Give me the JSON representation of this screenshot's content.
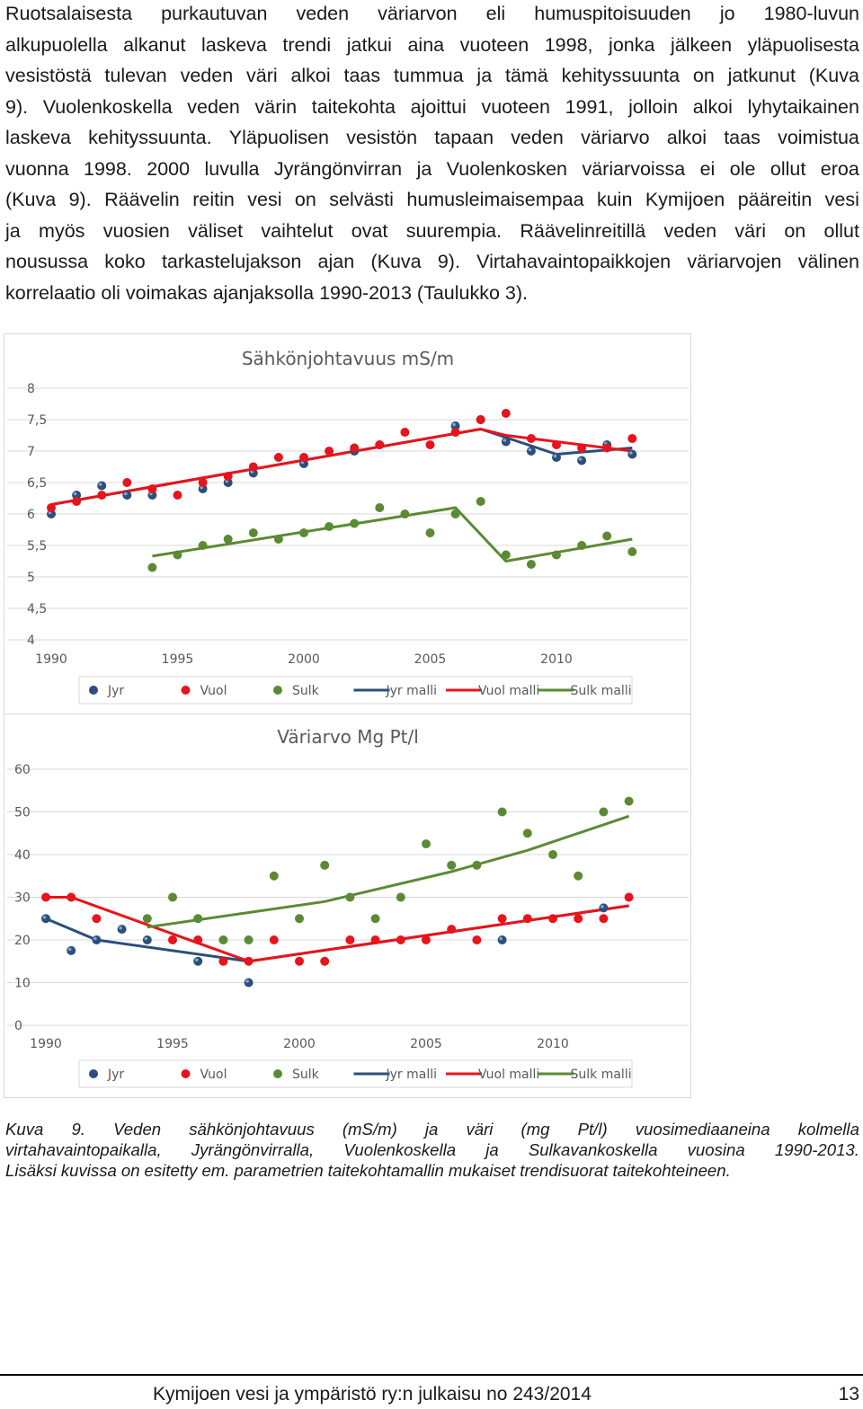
{
  "paragraph_lines": [
    "Ruotsalaisesta purkautuvan veden väriarvon eli humuspitoisuuden jo 1980-luvun",
    "alkupuolella alkanut laskeva trendi jatkui aina vuoteen 1998, jonka jälkeen yläpuolisesta",
    "vesistöstä tulevan veden väri alkoi taas tummua ja tämä kehityssuunta on jatkunut (Kuva",
    "9). Vuolenkoskella veden värin taitekohta ajoittui vuoteen 1991, jolloin alkoi lyhytaikainen",
    "laskeva kehityssuunta. Yläpuolisen vesistön tapaan veden väriarvo alkoi taas voimistua",
    "vuonna 1998. 2000 luvulla Jyrängönvirran ja Vuolenkosken väriarvoissa ei ole ollut eroa",
    "(Kuva 9). Räävelin reitin vesi on selvästi humusleimaisempaa kuin Kymijoen pääreitin vesi",
    "ja myös vuosien väliset vaihtelut ovat suurempia. Räävelinreitillä veden väri on ollut",
    "nousussa koko tarkastelujakson ajan (Kuva 9). Virtahavaintopaikkojen väriarvojen välinen",
    "korrelaatio oli voimakas ajanjaksolla 1990-2013 (Taulukko 3)."
  ],
  "caption_lines": [
    "Kuva 9. Veden sähkönjohtavuus (mS/m) ja väri (mg Pt/l) vuosimediaaneina kolmella",
    "virtahavaintopaikalla, Jyrängönvirralla, Vuolenkoskella ja Sulkavankoskella vuosina 1990-2013.",
    "Lisäksi kuvissa on esitetty em. parametrien taitekohtamallin mukaiset trendisuorat taitekohteineen."
  ],
  "footer": {
    "publication": "Kymijoen vesi ja ympäristö ry:n julkaisu no 243/2014",
    "page_number": "13"
  },
  "colors": {
    "jyr": "#2b4f7a",
    "vuol": "#e8141b",
    "sulk": "#5b8a33",
    "grid": "#d9d9d9",
    "axis_text": "#595959"
  },
  "chart_data": [
    {
      "type": "scatter",
      "title": "Sähkönjohtavuus mS/m",
      "xlabel": "",
      "ylabel": "",
      "xlim": [
        1990,
        2013
      ],
      "ylim": [
        4,
        8
      ],
      "x_ticks": [
        "1990",
        "1995",
        "2000",
        "2005",
        "2010"
      ],
      "y_ticks": [
        "8",
        "7,5",
        "7",
        "6,5",
        "6",
        "5,5",
        "5",
        "4,5",
        "4"
      ],
      "grid": true,
      "legend_position": "bottom",
      "legend": [
        "Jyr",
        "Vuol",
        "Sulk",
        "Jyr malli",
        "Vuol malli",
        "Sulk malli"
      ],
      "series": [
        {
          "name": "Jyr",
          "kind": "points",
          "color": "jyr",
          "points": [
            [
              1990,
              6.0
            ],
            [
              1991,
              6.3
            ],
            [
              1992,
              6.45
            ],
            [
              1993,
              6.3
            ],
            [
              1994,
              6.3
            ],
            [
              1996,
              6.4
            ],
            [
              1997,
              6.5
            ],
            [
              1998,
              6.65
            ],
            [
              2000,
              6.8
            ],
            [
              2002,
              7.0
            ],
            [
              2003,
              7.1
            ],
            [
              2006,
              7.4
            ],
            [
              2007,
              7.5
            ],
            [
              2008,
              7.15
            ],
            [
              2009,
              7.0
            ],
            [
              2010,
              6.9
            ],
            [
              2011,
              6.85
            ],
            [
              2012,
              7.1
            ],
            [
              2013,
              6.95
            ]
          ]
        },
        {
          "name": "Vuol",
          "kind": "points",
          "color": "vuol",
          "points": [
            [
              1990,
              6.1
            ],
            [
              1991,
              6.2
            ],
            [
              1992,
              6.3
            ],
            [
              1993,
              6.5
            ],
            [
              1994,
              6.4
            ],
            [
              1995,
              6.3
            ],
            [
              1996,
              6.5
            ],
            [
              1997,
              6.6
            ],
            [
              1998,
              6.75
            ],
            [
              1999,
              6.9
            ],
            [
              2000,
              6.9
            ],
            [
              2001,
              7.0
            ],
            [
              2002,
              7.05
            ],
            [
              2003,
              7.1
            ],
            [
              2004,
              7.3
            ],
            [
              2005,
              7.1
            ],
            [
              2006,
              7.3
            ],
            [
              2007,
              7.5
            ],
            [
              2008,
              7.6
            ],
            [
              2009,
              7.2
            ],
            [
              2010,
              7.1
            ],
            [
              2011,
              7.05
            ],
            [
              2012,
              7.05
            ],
            [
              2013,
              7.2
            ]
          ]
        },
        {
          "name": "Sulk",
          "kind": "points",
          "color": "sulk",
          "points": [
            [
              1994,
              5.15
            ],
            [
              1995,
              5.35
            ],
            [
              1996,
              5.5
            ],
            [
              1997,
              5.6
            ],
            [
              1998,
              5.7
            ],
            [
              1999,
              5.6
            ],
            [
              2000,
              5.7
            ],
            [
              2001,
              5.8
            ],
            [
              2002,
              5.85
            ],
            [
              2003,
              6.1
            ],
            [
              2004,
              6.0
            ],
            [
              2005,
              5.7
            ],
            [
              2006,
              6.0
            ],
            [
              2007,
              6.2
            ],
            [
              2008,
              5.35
            ],
            [
              2009,
              5.2
            ],
            [
              2010,
              5.35
            ],
            [
              2011,
              5.5
            ],
            [
              2012,
              5.65
            ],
            [
              2013,
              5.4
            ]
          ]
        },
        {
          "name": "Jyr malli",
          "kind": "line",
          "color": "jyr",
          "points": [
            [
              1990,
              6.15
            ],
            [
              2007,
              7.35
            ],
            [
              2010,
              6.95
            ],
            [
              2013,
              7.05
            ]
          ]
        },
        {
          "name": "Vuol malli",
          "kind": "line",
          "color": "vuol",
          "points": [
            [
              1990,
              6.15
            ],
            [
              2007,
              7.35
            ],
            [
              2008,
              7.25
            ],
            [
              2013,
              7.0
            ]
          ]
        },
        {
          "name": "Sulk malli",
          "kind": "line",
          "color": "sulk",
          "points": [
            [
              1994,
              5.33
            ],
            [
              2006,
              6.1
            ],
            [
              2008,
              5.25
            ],
            [
              2013,
              5.6
            ]
          ]
        }
      ]
    },
    {
      "type": "scatter",
      "title": "Väriarvo Mg Pt/l",
      "xlabel": "",
      "ylabel": "",
      "xlim": [
        1990,
        2013
      ],
      "ylim": [
        0,
        60
      ],
      "x_ticks": [
        "1990",
        "1995",
        "2000",
        "2005",
        "2010"
      ],
      "y_ticks": [
        "60",
        "50",
        "40",
        "30",
        "20",
        "10",
        "0"
      ],
      "grid": true,
      "legend_position": "bottom",
      "legend": [
        "Jyr",
        "Vuol",
        "Sulk",
        "Jyr malli",
        "Vuol malli",
        "Sulk malli"
      ],
      "series": [
        {
          "name": "Jyr",
          "kind": "points",
          "color": "jyr",
          "points": [
            [
              1990,
              25
            ],
            [
              1991,
              17.5
            ],
            [
              1992,
              20
            ],
            [
              1993,
              22.5
            ],
            [
              1994,
              20
            ],
            [
              1996,
              15
            ],
            [
              1998,
              10
            ],
            [
              2008,
              20
            ],
            [
              2012,
              27.5
            ]
          ]
        },
        {
          "name": "Vuol",
          "kind": "points",
          "color": "vuol",
          "points": [
            [
              1990,
              30
            ],
            [
              1991,
              30
            ],
            [
              1992,
              25
            ],
            [
              1995,
              20
            ],
            [
              1996,
              20
            ],
            [
              1997,
              15
            ],
            [
              1998,
              15
            ],
            [
              1999,
              20
            ],
            [
              2000,
              15
            ],
            [
              2001,
              15
            ],
            [
              2002,
              20
            ],
            [
              2003,
              20
            ],
            [
              2004,
              20
            ],
            [
              2005,
              20
            ],
            [
              2006,
              22.5
            ],
            [
              2007,
              20
            ],
            [
              2008,
              25
            ],
            [
              2009,
              25
            ],
            [
              2010,
              25
            ],
            [
              2011,
              25
            ],
            [
              2012,
              25
            ],
            [
              2013,
              30
            ]
          ]
        },
        {
          "name": "Sulk",
          "kind": "points",
          "color": "sulk",
          "points": [
            [
              1994,
              25
            ],
            [
              1995,
              30
            ],
            [
              1996,
              25
            ],
            [
              1997,
              20
            ],
            [
              1998,
              20
            ],
            [
              1999,
              35
            ],
            [
              2000,
              25
            ],
            [
              2001,
              37.5
            ],
            [
              2002,
              30
            ],
            [
              2003,
              25
            ],
            [
              2004,
              30
            ],
            [
              2005,
              42.5
            ],
            [
              2006,
              37.5
            ],
            [
              2007,
              37.5
            ],
            [
              2008,
              50
            ],
            [
              2009,
              45
            ],
            [
              2010,
              40
            ],
            [
              2011,
              35
            ],
            [
              2012,
              50
            ],
            [
              2013,
              52.5
            ]
          ]
        },
        {
          "name": "Jyr malli",
          "kind": "line",
          "color": "jyr",
          "points": [
            [
              1990,
              25
            ],
            [
              1992,
              20
            ],
            [
              1998,
              15
            ],
            [
              2013,
              28
            ]
          ]
        },
        {
          "name": "Vuol malli",
          "kind": "line",
          "color": "vuol",
          "points": [
            [
              1990,
              30
            ],
            [
              1991,
              30
            ],
            [
              1998,
              15
            ],
            [
              2013,
              28
            ]
          ]
        },
        {
          "name": "Sulk malli",
          "kind": "line",
          "color": "sulk",
          "points": [
            [
              1994,
              23
            ],
            [
              2001,
              29
            ],
            [
              2006,
              36
            ],
            [
              2009,
              41
            ],
            [
              2013,
              49
            ]
          ]
        }
      ]
    }
  ]
}
